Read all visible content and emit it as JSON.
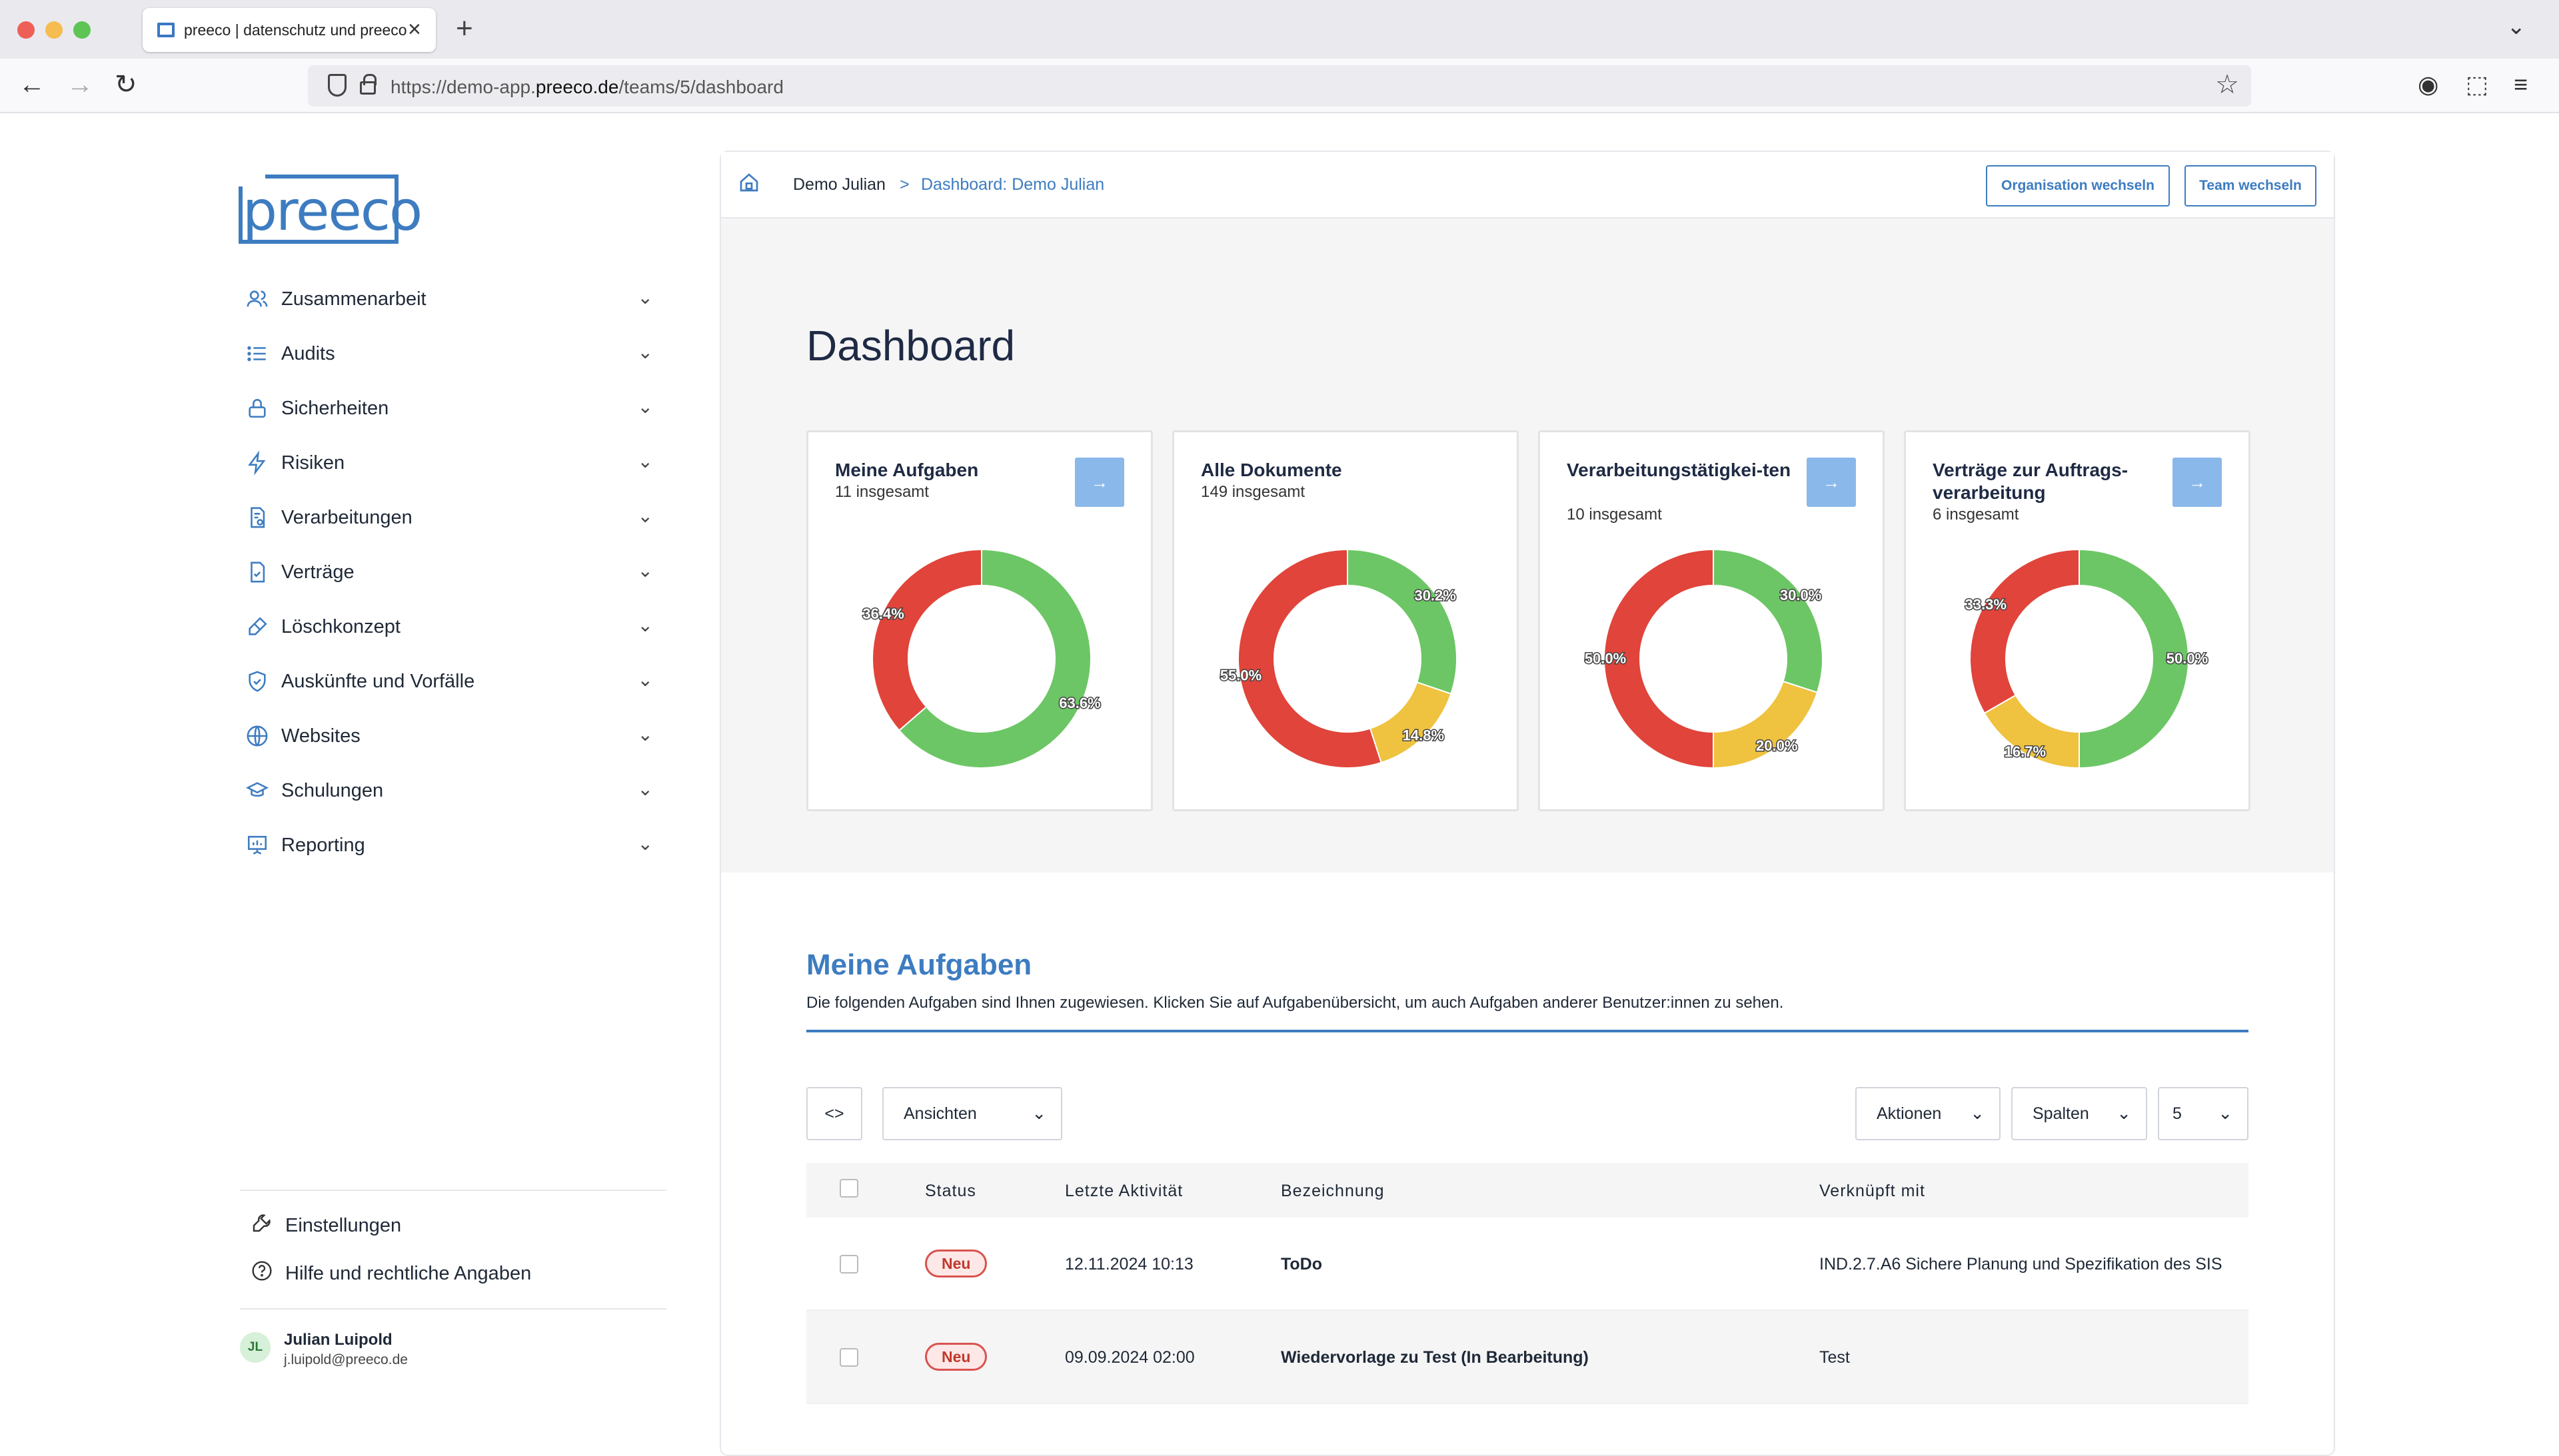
{
  "browser": {
    "tab_title": "preeco | datenschutz und preeco",
    "url_prefix": "https://demo-app.",
    "url_domain": "preeco.de",
    "url_path": "/teams/5/dashboard"
  },
  "sidebar": {
    "logo": "preeco",
    "items": [
      {
        "label": "Zusammenarbeit",
        "icon": "users-icon"
      },
      {
        "label": "Audits",
        "icon": "list-icon"
      },
      {
        "label": "Sicherheiten",
        "icon": "lock-icon"
      },
      {
        "label": "Risiken",
        "icon": "bolt-icon"
      },
      {
        "label": "Verarbeitungen",
        "icon": "document-gear-icon"
      },
      {
        "label": "Verträge",
        "icon": "document-check-icon"
      },
      {
        "label": "Löschkonzept",
        "icon": "eraser-icon"
      },
      {
        "label": "Auskünfte und Vorfälle",
        "icon": "shield-check-icon"
      },
      {
        "label": "Websites",
        "icon": "globe-icon"
      },
      {
        "label": "Schulungen",
        "icon": "graduation-cap-icon"
      },
      {
        "label": "Reporting",
        "icon": "presentation-chart-icon"
      }
    ],
    "settings_label": "Einstellungen",
    "help_label": "Hilfe und rechtliche Angaben",
    "user": {
      "initials": "JL",
      "name": "Julian Luipold",
      "email": "j.luipold@preeco.de"
    }
  },
  "topbar": {
    "breadcrumb_root": "Demo Julian",
    "breadcrumb_sep": ">",
    "breadcrumb_current": "Dashboard: Demo Julian",
    "btn_org": "Organisation wechseln",
    "btn_team": "Team wechseln"
  },
  "dashboard": {
    "title": "Dashboard",
    "arrow": "→"
  },
  "colors": {
    "green": "#6cc665",
    "yellow": "#efc23f",
    "red": "#e0443a",
    "accent": "#3d7cc0"
  },
  "chart_data": [
    {
      "type": "pie",
      "title": "Meine Aufgaben",
      "subtitle": "11 insgesamt",
      "has_arrow": true,
      "slices": [
        {
          "color": "green",
          "value": 63.6,
          "label": "63.6%"
        },
        {
          "color": "red",
          "value": 36.4,
          "label": "36.4%"
        }
      ]
    },
    {
      "type": "pie",
      "title": "Alle Dokumente",
      "subtitle": "149 insgesamt",
      "has_arrow": false,
      "slices": [
        {
          "color": "green",
          "value": 30.2,
          "label": "30.2%"
        },
        {
          "color": "yellow",
          "value": 14.8,
          "label": "14.8%"
        },
        {
          "color": "red",
          "value": 55.0,
          "label": "55.0%"
        }
      ]
    },
    {
      "type": "pie",
      "title": "Verarbeitungstätigkei-ten",
      "subtitle": "10 insgesamt",
      "has_arrow": true,
      "slices": [
        {
          "color": "green",
          "value": 30.0,
          "label": "30.0%"
        },
        {
          "color": "yellow",
          "value": 20.0,
          "label": "20.0%"
        },
        {
          "color": "red",
          "value": 50.0,
          "label": "50.0%"
        }
      ]
    },
    {
      "type": "pie",
      "title": "Verträge zur Auftrags-verarbeitung",
      "subtitle": "6 insgesamt",
      "has_arrow": true,
      "slices": [
        {
          "color": "green",
          "value": 50.0,
          "label": "50.0%"
        },
        {
          "color": "yellow",
          "value": 16.7,
          "label": "16.7%"
        },
        {
          "color": "red",
          "value": 33.3,
          "label": "33.3%"
        }
      ]
    }
  ],
  "tasks": {
    "title": "Meine Aufgaben",
    "description": "Die folgenden Aufgaben sind Ihnen zugewiesen. Klicken Sie auf Aufgabenübersicht, um auch Aufgaben anderer Benutzer:innen zu sehen.",
    "toggle_label": "<>",
    "views_label": "Ansichten",
    "actions_label": "Aktionen",
    "columns_label": "Spalten",
    "page_size": "5",
    "headers": [
      "Status",
      "Letzte Aktivität",
      "Bezeichnung",
      "Verknüpft mit"
    ],
    "rows": [
      {
        "status": "Neu",
        "activity": "12.11.2024 10:13",
        "name": "ToDo",
        "linked": "IND.2.7.A6 Sichere Planung und Spezifikation des SIS"
      },
      {
        "status": "Neu",
        "activity": "09.09.2024 02:00",
        "name": "Wiedervorlage zu Test (In Bearbeitung)",
        "linked": "Test"
      }
    ]
  }
}
